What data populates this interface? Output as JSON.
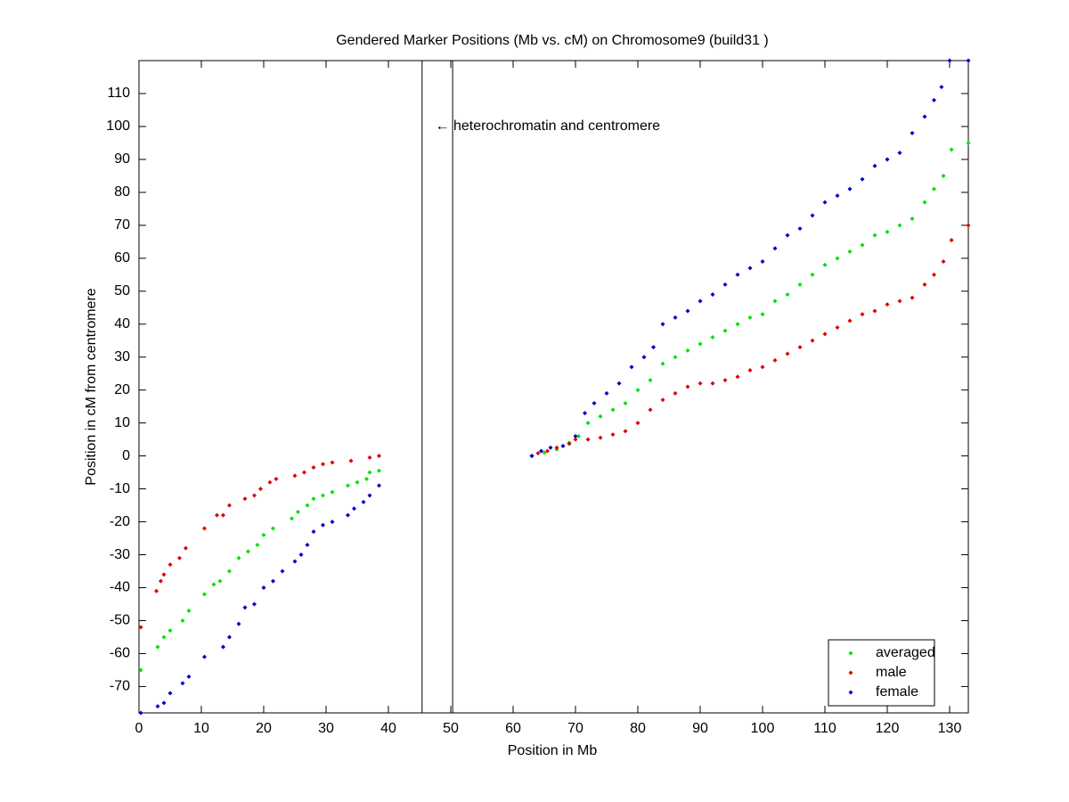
{
  "chart_data": {
    "type": "scatter",
    "title": "Gendered Marker Positions (Mb vs. cM) on Chromosome9 (build31 )",
    "xlabel": "Position in Mb",
    "ylabel": "Position in cM from centromere",
    "xlim": [
      0,
      133
    ],
    "ylim": [
      -78,
      120
    ],
    "xticks": [
      0,
      10,
      20,
      30,
      40,
      50,
      60,
      70,
      80,
      90,
      100,
      110,
      120,
      130
    ],
    "yticks": [
      -70,
      -60,
      -50,
      -40,
      -30,
      -20,
      -10,
      0,
      10,
      20,
      30,
      40,
      50,
      60,
      70,
      80,
      90,
      100,
      110
    ],
    "vlines": [
      45.4,
      50.3
    ],
    "annotation": {
      "text": "← heterochromatin and centromere",
      "x": 47.5,
      "y": 100
    },
    "legend": "lower right",
    "series": [
      {
        "name": "averaged",
        "color": "#00e000",
        "x": [
          0.3,
          3,
          4,
          5,
          7,
          8,
          10.5,
          12,
          13,
          14.5,
          16,
          17.5,
          19,
          20,
          21.5,
          24.5,
          25.5,
          27,
          28,
          29.5,
          31,
          33.5,
          35,
          36.5,
          37,
          38.5,
          63,
          65,
          67,
          69,
          70.5,
          72,
          74,
          76,
          78,
          80,
          82,
          84,
          86,
          88,
          90,
          92,
          94,
          96,
          98,
          100,
          102,
          104,
          106,
          108,
          110,
          112,
          114,
          116,
          118,
          120,
          122,
          124,
          126,
          127.5,
          129,
          130.3,
          133
        ],
        "values": [
          -65,
          -58,
          -55,
          -53,
          -50,
          -47,
          -42,
          -39,
          -38,
          -35,
          -31,
          -29,
          -27,
          -24,
          -22,
          -19,
          -17,
          -15,
          -13,
          -12,
          -11,
          -9,
          -8,
          -7,
          -5,
          -4.5,
          0,
          1,
          2,
          4,
          6,
          10,
          12,
          14,
          16,
          20,
          23,
          28,
          30,
          32,
          34,
          36,
          38,
          40,
          42,
          43,
          47,
          49,
          52,
          55,
          58,
          60,
          62,
          64,
          67,
          68,
          70,
          72,
          77,
          81,
          85,
          93,
          95
        ]
      },
      {
        "name": "male",
        "color": "#e00000",
        "x": [
          0.3,
          2.8,
          3.5,
          4,
          5,
          6.5,
          7.5,
          10.5,
          12.5,
          13.5,
          14.5,
          17,
          18.5,
          19.5,
          21,
          22,
          25,
          26.5,
          28,
          29.5,
          31,
          34,
          37,
          38.5,
          63,
          64,
          65.5,
          67,
          69,
          70,
          72,
          74,
          76,
          78,
          80,
          82,
          84,
          86,
          88,
          90,
          92,
          94,
          96,
          98,
          100,
          102,
          104,
          106,
          108,
          110,
          112,
          114,
          116,
          118,
          120,
          122,
          124,
          126,
          127.5,
          129,
          130.3,
          133
        ],
        "values": [
          -52,
          -41,
          -38,
          -36,
          -33,
          -31,
          -28,
          -22,
          -18,
          -18,
          -15,
          -13,
          -12,
          -10,
          -8,
          -7,
          -6,
          -5,
          -3.5,
          -2.5,
          -2,
          -1.5,
          -0.5,
          0,
          0,
          0.8,
          1.5,
          2.5,
          3.7,
          5,
          5,
          5.5,
          6.5,
          7.5,
          10,
          14,
          17,
          19,
          21,
          22,
          22,
          23,
          24,
          26,
          27,
          29,
          31,
          33,
          35,
          37,
          39,
          41,
          43,
          44,
          46,
          47,
          48,
          52,
          55,
          59,
          65.5,
          70
        ]
      },
      {
        "name": "female",
        "color": "#0000c8",
        "x": [
          0.3,
          3,
          4,
          5,
          7,
          8,
          10.5,
          13.5,
          14.5,
          16,
          17,
          18.5,
          20,
          21.5,
          23,
          25,
          26,
          27,
          28,
          29.5,
          31,
          33.5,
          34.5,
          36,
          37,
          38.5,
          63,
          64.5,
          66,
          68,
          70,
          71.5,
          73,
          75,
          77,
          79,
          81,
          82.5,
          84,
          86,
          88,
          90,
          92,
          94,
          96,
          98,
          100,
          102,
          104,
          106,
          108,
          110,
          112,
          114,
          116,
          118,
          120,
          122,
          124,
          126,
          127.5,
          128.7,
          130,
          133
        ],
        "values": [
          -78,
          -76,
          -75,
          -72,
          -69,
          -67,
          -61,
          -58,
          -55,
          -51,
          -46,
          -45,
          -40,
          -38,
          -35,
          -32,
          -30,
          -27,
          -23,
          -21,
          -20,
          -18,
          -16,
          -14,
          -12,
          -9,
          0,
          1.5,
          2.5,
          3,
          6,
          13,
          16,
          19,
          22,
          27,
          30,
          33,
          40,
          42,
          44,
          47,
          49,
          52,
          55,
          57,
          59,
          63,
          67,
          69,
          73,
          77,
          79,
          81,
          84,
          88,
          90,
          92,
          98,
          103,
          108,
          112,
          120,
          120
        ]
      }
    ]
  }
}
